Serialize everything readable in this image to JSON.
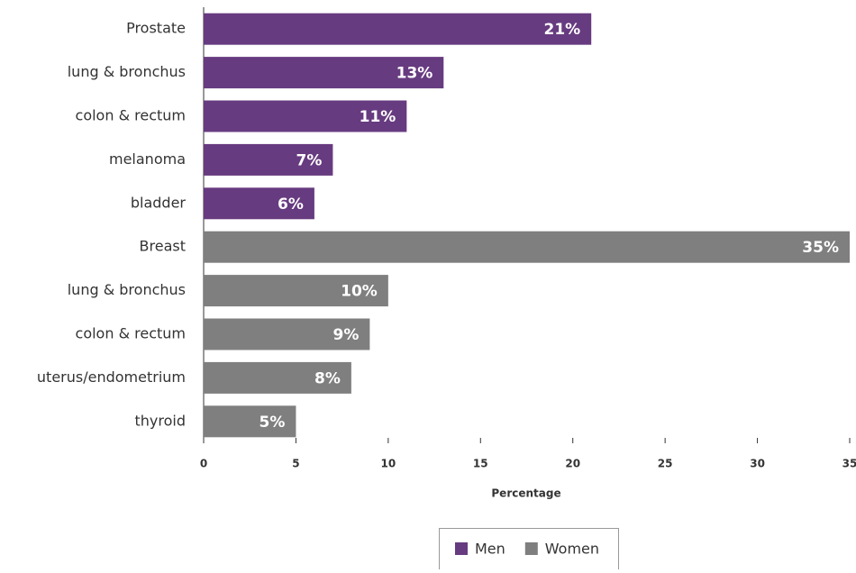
{
  "chart_data": {
    "type": "bar",
    "orientation": "horizontal",
    "categories": [
      "Prostate",
      "lung & bronchus",
      "colon & rectum",
      "melanoma",
      "bladder",
      "Breast",
      "lung & bronchus",
      "colon & rectum",
      "uterus/endometrium",
      "thyroid"
    ],
    "series": [
      {
        "name": "Men",
        "color": "#673b80",
        "values": [
          21,
          13,
          11,
          7,
          6,
          null,
          null,
          null,
          null,
          null
        ],
        "value_labels": [
          "21%",
          "13%",
          "11%",
          "7%",
          "6%",
          null,
          null,
          null,
          null,
          null
        ]
      },
      {
        "name": "Women",
        "color": "#7f7f7f",
        "values": [
          null,
          null,
          null,
          null,
          null,
          35,
          10,
          9,
          8,
          5
        ],
        "value_labels": [
          null,
          null,
          null,
          null,
          null,
          "35%",
          "10%",
          "9%",
          "8%",
          "5%"
        ]
      }
    ],
    "x_label": "Percentage",
    "xlim": [
      0,
      35
    ],
    "xticks": [
      0,
      5,
      10,
      15,
      20,
      25,
      30,
      35
    ],
    "legend": "bottom"
  }
}
